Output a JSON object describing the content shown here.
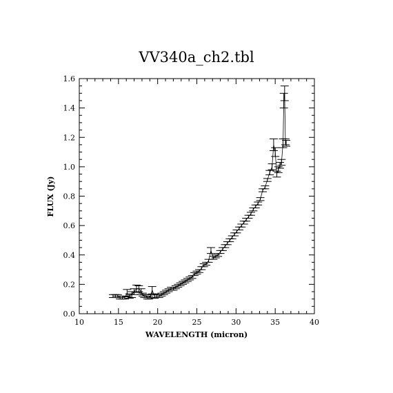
{
  "chart_data": {
    "type": "line",
    "title": "VV340a_ch2.tbl",
    "xlabel": "WAVELENGTH (micron)",
    "ylabel": "FLUX (Jy)",
    "xlim": [
      10,
      40
    ],
    "ylim": [
      0.0,
      1.6
    ],
    "xticks": [
      "10",
      "15",
      "20",
      "25",
      "30",
      "35",
      "40"
    ],
    "yticks": [
      "0.0",
      "0.2",
      "0.4",
      "0.6",
      "0.8",
      "1.0",
      "1.2",
      "1.4",
      "1.6"
    ],
    "grid": false,
    "series": [
      {
        "name": "",
        "x": [
          14.3,
          14.6,
          14.9,
          15.2,
          15.5,
          15.8,
          16.1,
          16.4,
          16.7,
          17.0,
          17.3,
          17.6,
          17.9,
          18.1,
          18.3,
          18.5,
          18.7,
          18.9,
          19.1,
          19.3,
          19.6,
          19.9,
          20.2,
          20.5,
          20.8,
          21.1,
          21.4,
          21.7,
          22.0,
          22.3,
          22.6,
          22.9,
          23.2,
          23.5,
          23.8,
          24.1,
          24.4,
          24.7,
          25.0,
          25.3,
          25.6,
          25.9,
          26.2,
          26.5,
          26.8,
          27.1,
          27.4,
          27.7,
          28.0,
          28.3,
          28.6,
          28.9,
          29.2,
          29.5,
          29.8,
          30.1,
          30.4,
          30.7,
          31.0,
          31.3,
          31.6,
          31.9,
          32.2,
          32.5,
          32.8,
          33.1,
          33.4,
          33.7,
          34.0,
          34.3,
          34.6,
          34.8,
          35.0,
          35.2,
          35.4,
          35.6,
          35.8,
          36.0,
          36.1,
          36.2,
          36.3,
          36.4
        ],
        "y": [
          0.12,
          0.12,
          0.12,
          0.11,
          0.11,
          0.11,
          0.14,
          0.12,
          0.13,
          0.15,
          0.17,
          0.17,
          0.15,
          0.13,
          0.12,
          0.12,
          0.11,
          0.11,
          0.12,
          0.16,
          0.12,
          0.12,
          0.12,
          0.13,
          0.14,
          0.15,
          0.16,
          0.17,
          0.17,
          0.18,
          0.19,
          0.2,
          0.21,
          0.22,
          0.23,
          0.24,
          0.25,
          0.27,
          0.28,
          0.29,
          0.31,
          0.33,
          0.34,
          0.36,
          0.43,
          0.38,
          0.39,
          0.4,
          0.42,
          0.44,
          0.46,
          0.48,
          0.5,
          0.52,
          0.54,
          0.56,
          0.58,
          0.6,
          0.62,
          0.64,
          0.66,
          0.68,
          0.71,
          0.73,
          0.75,
          0.78,
          0.84,
          0.86,
          0.91,
          0.96,
          1.0,
          1.15,
          1.1,
          0.95,
          0.98,
          1.01,
          1.03,
          1.16,
          1.45,
          1.5,
          1.17,
          1.16
        ],
        "err": [
          0.01,
          0.01,
          0.01,
          0.01,
          0.01,
          0.01,
          0.025,
          0.015,
          0.02,
          0.02,
          0.025,
          0.02,
          0.02,
          0.01,
          0.01,
          0.01,
          0.01,
          0.01,
          0.01,
          0.025,
          0.015,
          0.01,
          0.01,
          0.01,
          0.01,
          0.01,
          0.01,
          0.01,
          0.01,
          0.01,
          0.01,
          0.01,
          0.01,
          0.01,
          0.01,
          0.01,
          0.01,
          0.01,
          0.01,
          0.01,
          0.01,
          0.01,
          0.01,
          0.01,
          0.02,
          0.01,
          0.01,
          0.01,
          0.01,
          0.01,
          0.01,
          0.01,
          0.01,
          0.01,
          0.01,
          0.01,
          0.01,
          0.01,
          0.01,
          0.01,
          0.01,
          0.01,
          0.01,
          0.01,
          0.01,
          0.01,
          0.01,
          0.01,
          0.01,
          0.015,
          0.02,
          0.04,
          0.03,
          0.02,
          0.02,
          0.02,
          0.02,
          0.03,
          0.05,
          0.05,
          0.02,
          0.02
        ]
      }
    ]
  }
}
